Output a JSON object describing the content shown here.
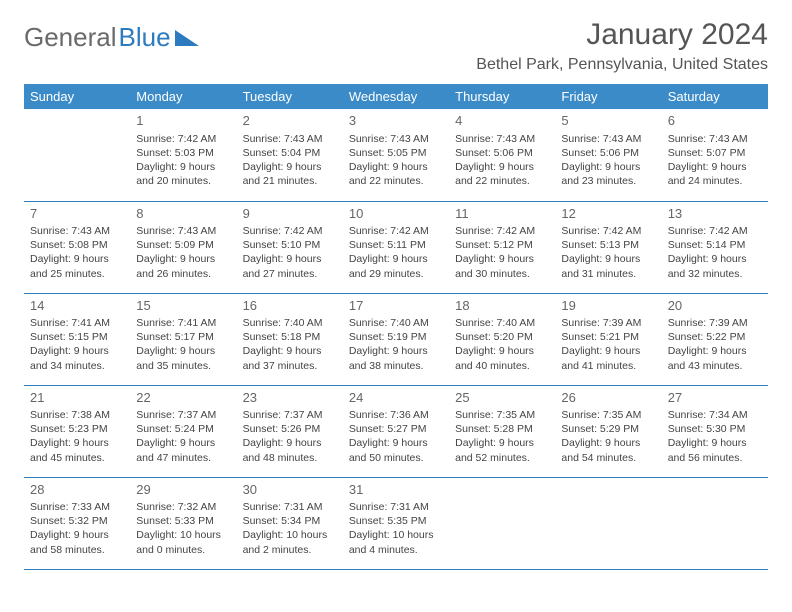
{
  "logo": {
    "text1": "General",
    "text2": "Blue"
  },
  "header": {
    "month_title": "January 2024",
    "location": "Bethel Park, Pennsylvania, United States"
  },
  "colors": {
    "header_bg": "#3b8bc8",
    "header_text": "#ffffff",
    "border": "#2d7bbf",
    "body_text": "#444444",
    "day_num": "#666666",
    "logo_gray": "#6a6a6a",
    "logo_blue": "#2d7bbf",
    "page_bg": "#ffffff"
  },
  "weekdays": [
    "Sunday",
    "Monday",
    "Tuesday",
    "Wednesday",
    "Thursday",
    "Friday",
    "Saturday"
  ],
  "weeks": [
    [
      null,
      {
        "n": "1",
        "sr": "Sunrise: 7:42 AM",
        "ss": "Sunset: 5:03 PM",
        "d1": "Daylight: 9 hours",
        "d2": "and 20 minutes."
      },
      {
        "n": "2",
        "sr": "Sunrise: 7:43 AM",
        "ss": "Sunset: 5:04 PM",
        "d1": "Daylight: 9 hours",
        "d2": "and 21 minutes."
      },
      {
        "n": "3",
        "sr": "Sunrise: 7:43 AM",
        "ss": "Sunset: 5:05 PM",
        "d1": "Daylight: 9 hours",
        "d2": "and 22 minutes."
      },
      {
        "n": "4",
        "sr": "Sunrise: 7:43 AM",
        "ss": "Sunset: 5:06 PM",
        "d1": "Daylight: 9 hours",
        "d2": "and 22 minutes."
      },
      {
        "n": "5",
        "sr": "Sunrise: 7:43 AM",
        "ss": "Sunset: 5:06 PM",
        "d1": "Daylight: 9 hours",
        "d2": "and 23 minutes."
      },
      {
        "n": "6",
        "sr": "Sunrise: 7:43 AM",
        "ss": "Sunset: 5:07 PM",
        "d1": "Daylight: 9 hours",
        "d2": "and 24 minutes."
      }
    ],
    [
      {
        "n": "7",
        "sr": "Sunrise: 7:43 AM",
        "ss": "Sunset: 5:08 PM",
        "d1": "Daylight: 9 hours",
        "d2": "and 25 minutes."
      },
      {
        "n": "8",
        "sr": "Sunrise: 7:43 AM",
        "ss": "Sunset: 5:09 PM",
        "d1": "Daylight: 9 hours",
        "d2": "and 26 minutes."
      },
      {
        "n": "9",
        "sr": "Sunrise: 7:42 AM",
        "ss": "Sunset: 5:10 PM",
        "d1": "Daylight: 9 hours",
        "d2": "and 27 minutes."
      },
      {
        "n": "10",
        "sr": "Sunrise: 7:42 AM",
        "ss": "Sunset: 5:11 PM",
        "d1": "Daylight: 9 hours",
        "d2": "and 29 minutes."
      },
      {
        "n": "11",
        "sr": "Sunrise: 7:42 AM",
        "ss": "Sunset: 5:12 PM",
        "d1": "Daylight: 9 hours",
        "d2": "and 30 minutes."
      },
      {
        "n": "12",
        "sr": "Sunrise: 7:42 AM",
        "ss": "Sunset: 5:13 PM",
        "d1": "Daylight: 9 hours",
        "d2": "and 31 minutes."
      },
      {
        "n": "13",
        "sr": "Sunrise: 7:42 AM",
        "ss": "Sunset: 5:14 PM",
        "d1": "Daylight: 9 hours",
        "d2": "and 32 minutes."
      }
    ],
    [
      {
        "n": "14",
        "sr": "Sunrise: 7:41 AM",
        "ss": "Sunset: 5:15 PM",
        "d1": "Daylight: 9 hours",
        "d2": "and 34 minutes."
      },
      {
        "n": "15",
        "sr": "Sunrise: 7:41 AM",
        "ss": "Sunset: 5:17 PM",
        "d1": "Daylight: 9 hours",
        "d2": "and 35 minutes."
      },
      {
        "n": "16",
        "sr": "Sunrise: 7:40 AM",
        "ss": "Sunset: 5:18 PM",
        "d1": "Daylight: 9 hours",
        "d2": "and 37 minutes."
      },
      {
        "n": "17",
        "sr": "Sunrise: 7:40 AM",
        "ss": "Sunset: 5:19 PM",
        "d1": "Daylight: 9 hours",
        "d2": "and 38 minutes."
      },
      {
        "n": "18",
        "sr": "Sunrise: 7:40 AM",
        "ss": "Sunset: 5:20 PM",
        "d1": "Daylight: 9 hours",
        "d2": "and 40 minutes."
      },
      {
        "n": "19",
        "sr": "Sunrise: 7:39 AM",
        "ss": "Sunset: 5:21 PM",
        "d1": "Daylight: 9 hours",
        "d2": "and 41 minutes."
      },
      {
        "n": "20",
        "sr": "Sunrise: 7:39 AM",
        "ss": "Sunset: 5:22 PM",
        "d1": "Daylight: 9 hours",
        "d2": "and 43 minutes."
      }
    ],
    [
      {
        "n": "21",
        "sr": "Sunrise: 7:38 AM",
        "ss": "Sunset: 5:23 PM",
        "d1": "Daylight: 9 hours",
        "d2": "and 45 minutes."
      },
      {
        "n": "22",
        "sr": "Sunrise: 7:37 AM",
        "ss": "Sunset: 5:24 PM",
        "d1": "Daylight: 9 hours",
        "d2": "and 47 minutes."
      },
      {
        "n": "23",
        "sr": "Sunrise: 7:37 AM",
        "ss": "Sunset: 5:26 PM",
        "d1": "Daylight: 9 hours",
        "d2": "and 48 minutes."
      },
      {
        "n": "24",
        "sr": "Sunrise: 7:36 AM",
        "ss": "Sunset: 5:27 PM",
        "d1": "Daylight: 9 hours",
        "d2": "and 50 minutes."
      },
      {
        "n": "25",
        "sr": "Sunrise: 7:35 AM",
        "ss": "Sunset: 5:28 PM",
        "d1": "Daylight: 9 hours",
        "d2": "and 52 minutes."
      },
      {
        "n": "26",
        "sr": "Sunrise: 7:35 AM",
        "ss": "Sunset: 5:29 PM",
        "d1": "Daylight: 9 hours",
        "d2": "and 54 minutes."
      },
      {
        "n": "27",
        "sr": "Sunrise: 7:34 AM",
        "ss": "Sunset: 5:30 PM",
        "d1": "Daylight: 9 hours",
        "d2": "and 56 minutes."
      }
    ],
    [
      {
        "n": "28",
        "sr": "Sunrise: 7:33 AM",
        "ss": "Sunset: 5:32 PM",
        "d1": "Daylight: 9 hours",
        "d2": "and 58 minutes."
      },
      {
        "n": "29",
        "sr": "Sunrise: 7:32 AM",
        "ss": "Sunset: 5:33 PM",
        "d1": "Daylight: 10 hours",
        "d2": "and 0 minutes."
      },
      {
        "n": "30",
        "sr": "Sunrise: 7:31 AM",
        "ss": "Sunset: 5:34 PM",
        "d1": "Daylight: 10 hours",
        "d2": "and 2 minutes."
      },
      {
        "n": "31",
        "sr": "Sunrise: 7:31 AM",
        "ss": "Sunset: 5:35 PM",
        "d1": "Daylight: 10 hours",
        "d2": "and 4 minutes."
      },
      null,
      null,
      null
    ]
  ]
}
